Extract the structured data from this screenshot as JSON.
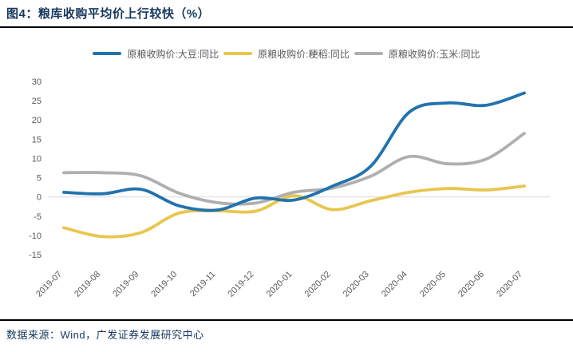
{
  "header": {
    "title": "图4：粮库收购平均价上行较快（%）"
  },
  "footer": {
    "source": "数据来源：Wind，广发证券发展研究中心"
  },
  "colors": {
    "title_text": "#17375E",
    "footer_text": "#17375E",
    "rule": "#000000",
    "axis_label": "#595959",
    "zero_line": "#D9D9D9",
    "background": "#FFFFFF"
  },
  "chart_data": {
    "type": "line",
    "title": "粮库收购平均价上行较快（%）",
    "xlabel": "",
    "ylabel": "",
    "x": [
      "2019-07",
      "2019-08",
      "2019-09",
      "2019-10",
      "2019-11",
      "2019-12",
      "2020-01",
      "2020-02",
      "2020-03",
      "2020-04",
      "2020-05",
      "2020-06",
      "2020-07"
    ],
    "series": [
      {
        "key": "soybean",
        "name": "原粮收购价:大豆:同比",
        "color": "#2272AE",
        "values": [
          1.2,
          0.8,
          2.0,
          -2.3,
          -3.4,
          -0.3,
          -0.8,
          2.8,
          8.0,
          22.0,
          24.4,
          23.8,
          27.0
        ]
      },
      {
        "key": "japonica-rice",
        "name": "原粮收购价:粳稻:同比",
        "color": "#E8C64F",
        "values": [
          -8.0,
          -10.3,
          -9.3,
          -4.2,
          -3.6,
          -3.7,
          0.3,
          -3.3,
          -1.0,
          1.2,
          2.2,
          1.8,
          2.8
        ]
      },
      {
        "key": "corn",
        "name": "原粮收购价:玉米:同比",
        "color": "#AFAFAF",
        "values": [
          6.3,
          6.3,
          5.5,
          1.0,
          -1.5,
          -1.6,
          1.2,
          2.3,
          5.4,
          10.5,
          8.6,
          9.8,
          16.5
        ]
      }
    ],
    "ylim": [
      -15,
      30
    ],
    "yticks": [
      30,
      25,
      20,
      15,
      10,
      5,
      0,
      -5,
      -10,
      -15
    ],
    "grid": "zero-line-only",
    "legend_position": "top"
  }
}
